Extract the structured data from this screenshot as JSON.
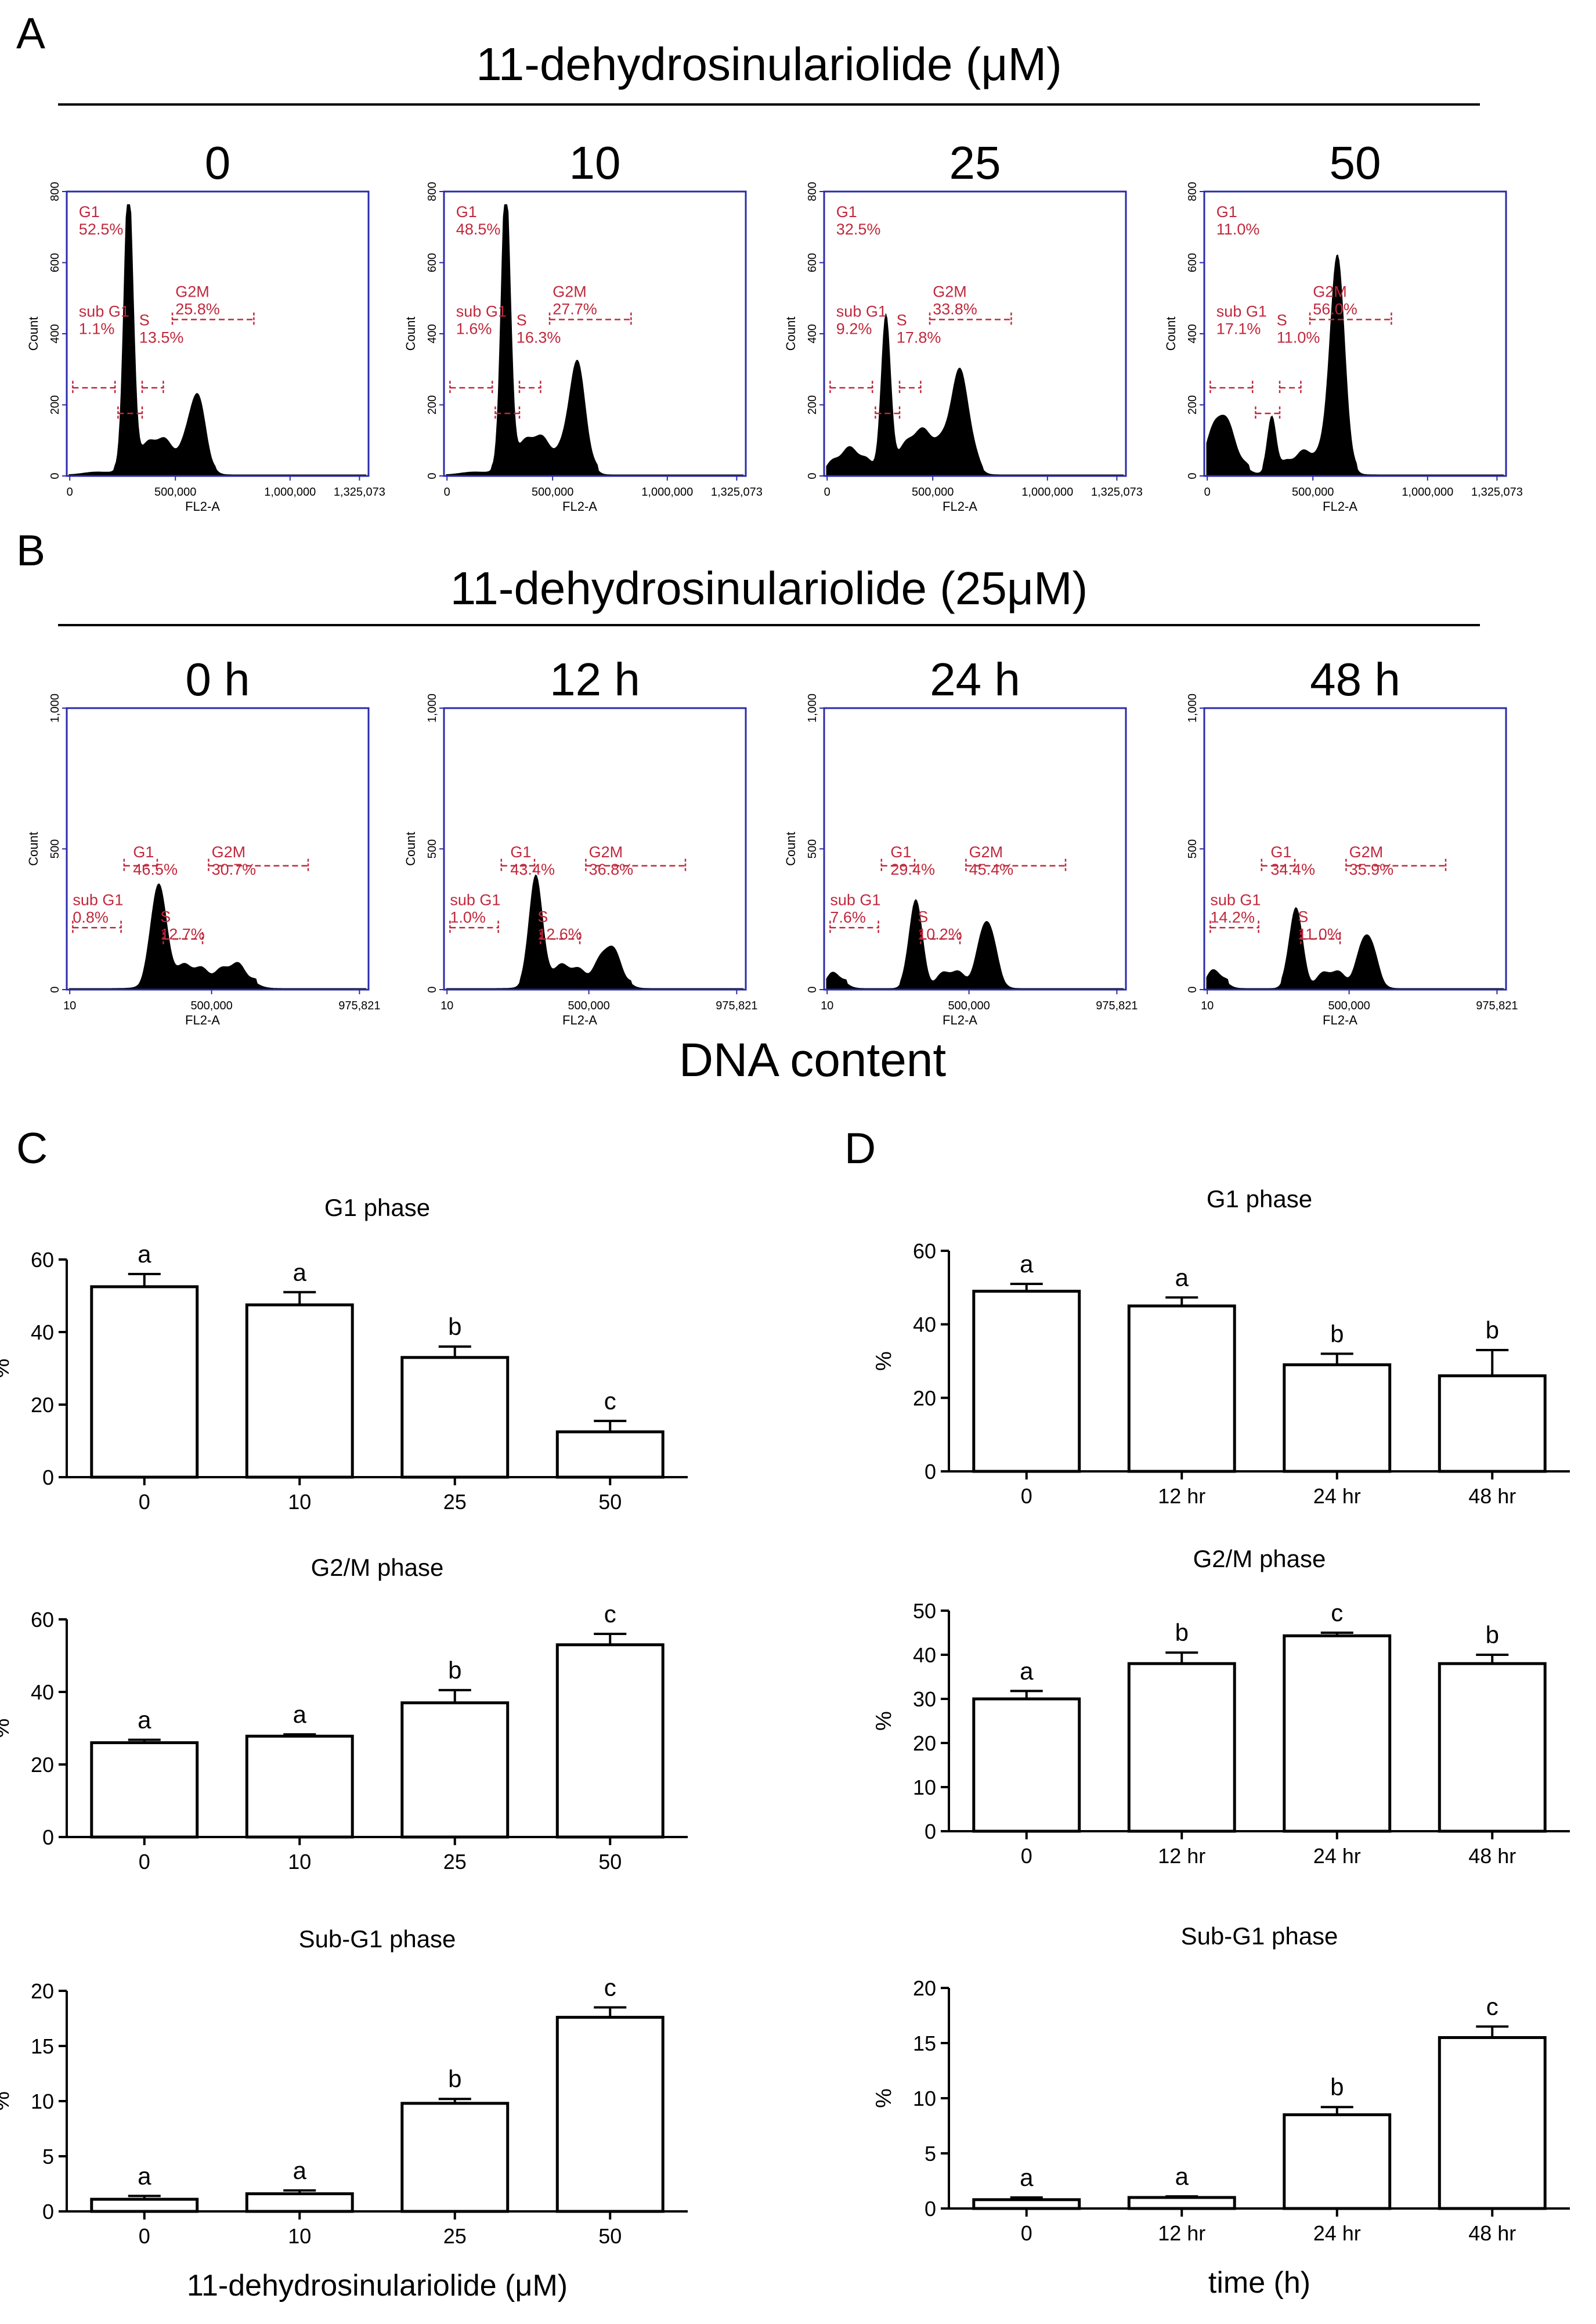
{
  "panel_letters": {
    "A": "A",
    "B": "B",
    "C": "C",
    "D": "D"
  },
  "section_A": {
    "title": "11-dehydrosinulariolide  (μM)"
  },
  "section_B": {
    "title": "11-dehydrosinulariolide  (25μM)"
  },
  "dna_content_label": "DNA content",
  "colors": {
    "histogram": "#000000",
    "frame": "#2b2baa",
    "gate": "#c0283c",
    "bar_fill": "#ffffff",
    "bar_stroke": "#000000"
  },
  "chart_data": [
    {
      "type": "histogram",
      "panel": "A",
      "title": "0",
      "xlabel": "FL2-A",
      "ylabel": "Count",
      "yticks": [
        "0",
        "200",
        "400",
        "600",
        "800"
      ],
      "xticks": [
        "0",
        "500,000",
        "1,000,000",
        "1,325,073"
      ],
      "gates": [
        {
          "name": "G1",
          "value": "52.5%"
        },
        {
          "name": "sub G1",
          "value": "1.1%"
        },
        {
          "name": "S",
          "value": "13.5%"
        },
        {
          "name": "G2M",
          "value": "25.8%"
        }
      ]
    },
    {
      "type": "histogram",
      "panel": "A",
      "title": "10",
      "xlabel": "FL2-A",
      "ylabel": "Count",
      "yticks": [
        "0",
        "200",
        "400",
        "600",
        "800"
      ],
      "xticks": [
        "0",
        "500,000",
        "1,000,000",
        "1,325,073"
      ],
      "gates": [
        {
          "name": "G1",
          "value": "48.5%"
        },
        {
          "name": "sub G1",
          "value": "1.6%"
        },
        {
          "name": "S",
          "value": "16.3%"
        },
        {
          "name": "G2M",
          "value": "27.7%"
        }
      ]
    },
    {
      "type": "histogram",
      "panel": "A",
      "title": "25",
      "xlabel": "FL2-A",
      "ylabel": "Count",
      "yticks": [
        "0",
        "200",
        "400",
        "600",
        "800"
      ],
      "xticks": [
        "0",
        "500,000",
        "1,000,000",
        "1,325,073"
      ],
      "gates": [
        {
          "name": "G1",
          "value": "32.5%"
        },
        {
          "name": "sub G1",
          "value": "9.2%"
        },
        {
          "name": "S",
          "value": "17.8%"
        },
        {
          "name": "G2M",
          "value": "33.8%"
        }
      ]
    },
    {
      "type": "histogram",
      "panel": "A",
      "title": "50",
      "xlabel": "FL2-A",
      "ylabel": "Count",
      "yticks": [
        "0",
        "200",
        "400",
        "600",
        "800"
      ],
      "xticks": [
        "0",
        "500,000",
        "1,000,000",
        "1,325,073"
      ],
      "gates": [
        {
          "name": "G1",
          "value": "11.0%"
        },
        {
          "name": "sub G1",
          "value": "17.1%"
        },
        {
          "name": "S",
          "value": "11.0%"
        },
        {
          "name": "G2M",
          "value": "56.0%"
        }
      ]
    },
    {
      "type": "histogram",
      "panel": "B",
      "title": "0 h",
      "xlabel": "FL2-A",
      "ylabel": "Count",
      "yticks": [
        "0",
        "500",
        "1,000"
      ],
      "xticks": [
        "10",
        "500,000",
        "975,821"
      ],
      "gates": [
        {
          "name": "G1",
          "value": "46.5%"
        },
        {
          "name": "sub G1",
          "value": "0.8%"
        },
        {
          "name": "S",
          "value": "12.7%"
        },
        {
          "name": "G2M",
          "value": "30.7%"
        }
      ]
    },
    {
      "type": "histogram",
      "panel": "B",
      "title": "12 h",
      "xlabel": "FL2-A",
      "ylabel": "Count",
      "yticks": [
        "0",
        "500",
        "1,000"
      ],
      "xticks": [
        "10",
        "500,000",
        "975,821"
      ],
      "gates": [
        {
          "name": "G1",
          "value": "43.4%"
        },
        {
          "name": "sub G1",
          "value": "1.0%"
        },
        {
          "name": "S",
          "value": "12.6%"
        },
        {
          "name": "G2M",
          "value": "36.8%"
        }
      ]
    },
    {
      "type": "histogram",
      "panel": "B",
      "title": "24 h",
      "xlabel": "FL2-A",
      "ylabel": "Count",
      "yticks": [
        "0",
        "500",
        "1,000"
      ],
      "xticks": [
        "10",
        "500,000",
        "975,821"
      ],
      "gates": [
        {
          "name": "G1",
          "value": "29.4%"
        },
        {
          "name": "sub G1",
          "value": "7.6%"
        },
        {
          "name": "S",
          "value": "10.2%"
        },
        {
          "name": "G2M",
          "value": "45.4%"
        }
      ]
    },
    {
      "type": "histogram",
      "panel": "B",
      "title": "48 h",
      "xlabel": "FL2-A",
      "ylabel": "",
      "yticks": [
        "0",
        "500",
        "1,000"
      ],
      "xticks": [
        "10",
        "500,000",
        "975,821"
      ],
      "gates": [
        {
          "name": "G1",
          "value": "34.4%"
        },
        {
          "name": "sub G1",
          "value": "14.2%"
        },
        {
          "name": "S",
          "value": "11.0%"
        },
        {
          "name": "G2M",
          "value": "35.9%"
        }
      ]
    },
    {
      "type": "bar",
      "panel": "C",
      "title": "G1 phase",
      "ylabel": "%",
      "xlabel": "",
      "categories": [
        "0",
        "10",
        "25",
        "50"
      ],
      "values": [
        52.5,
        47.5,
        33,
        12.5
      ],
      "errors": [
        3.5,
        3.5,
        3,
        3
      ],
      "letters": [
        "a",
        "a",
        "b",
        "c"
      ],
      "ylim": [
        0,
        60
      ],
      "yticks": [
        0,
        20,
        40,
        60
      ]
    },
    {
      "type": "bar",
      "panel": "C",
      "title": "G2/M phase",
      "ylabel": "%",
      "xlabel": "",
      "categories": [
        "0",
        "10",
        "25",
        "50"
      ],
      "values": [
        26,
        27.8,
        37,
        53
      ],
      "errors": [
        0.8,
        0.5,
        3.5,
        3
      ],
      "letters": [
        "a",
        "a",
        "b",
        "c"
      ],
      "ylim": [
        0,
        60
      ],
      "yticks": [
        0,
        20,
        40,
        60
      ]
    },
    {
      "type": "bar",
      "panel": "C",
      "title": "Sub-G1 phase",
      "ylabel": "%",
      "xlabel": "11-dehydrosinulariolide  (μM)",
      "categories": [
        "0",
        "10",
        "25",
        "50"
      ],
      "values": [
        1.1,
        1.6,
        9.8,
        17.6
      ],
      "errors": [
        0.3,
        0.3,
        0.4,
        0.9
      ],
      "letters": [
        "a",
        "a",
        "b",
        "c"
      ],
      "ylim": [
        0,
        20
      ],
      "yticks": [
        0,
        5,
        10,
        15,
        20
      ]
    },
    {
      "type": "bar",
      "panel": "D",
      "title": "G1 phase",
      "ylabel": "%",
      "xlabel": "",
      "categories": [
        "0",
        "12 hr",
        "24 hr",
        "48 hr"
      ],
      "values": [
        49,
        45,
        29,
        26
      ],
      "errors": [
        2,
        2.3,
        3,
        7
      ],
      "letters": [
        "a",
        "a",
        "b",
        "b"
      ],
      "ylim": [
        0,
        60
      ],
      "yticks": [
        0,
        20,
        40,
        60
      ]
    },
    {
      "type": "bar",
      "panel": "D",
      "title": "G2/M phase",
      "ylabel": "%",
      "xlabel": "",
      "categories": [
        "0",
        "12 hr",
        "24 hr",
        "48 hr"
      ],
      "values": [
        30,
        38,
        44.3,
        38
      ],
      "errors": [
        1.8,
        2.5,
        0.7,
        2
      ],
      "letters": [
        "a",
        "b",
        "c",
        "b"
      ],
      "ylim": [
        0,
        50
      ],
      "yticks": [
        0,
        10,
        20,
        30,
        40,
        50
      ]
    },
    {
      "type": "bar",
      "panel": "D",
      "title": "Sub-G1 phase",
      "ylabel": "%",
      "xlabel": "time (h)",
      "categories": [
        "0",
        "12 hr",
        "24 hr",
        "48 hr"
      ],
      "values": [
        0.8,
        1.0,
        8.5,
        15.5
      ],
      "errors": [
        0.2,
        0.1,
        0.7,
        1.0
      ],
      "letters": [
        "a",
        "a",
        "b",
        "c"
      ],
      "ylim": [
        0,
        20
      ],
      "yticks": [
        0,
        5,
        10,
        15,
        20
      ]
    }
  ]
}
